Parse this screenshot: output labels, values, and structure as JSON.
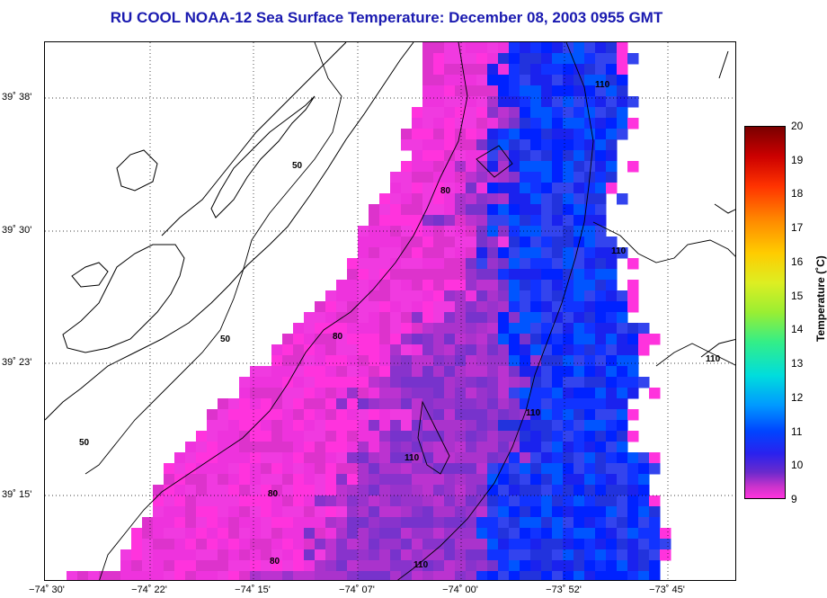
{
  "title": "RU COOL  NOAA-12  Sea Surface Temperature:  December 08, 2003 0955 GMT",
  "lat_labels": [
    "39˚ 38'",
    "39˚ 30'",
    "39˚ 23'",
    "39˚ 15'"
  ],
  "lon_labels": [
    "−74˚ 30'",
    "−74˚ 22'",
    "−74˚ 15'",
    "−74˚ 07'",
    "−74˚ 00'",
    "−73˚ 52'",
    "−73˚ 45'"
  ],
  "colorbar": {
    "title": "Temperature (˚C)",
    "ticks": [
      "20",
      "19",
      "18",
      "17",
      "16",
      "15",
      "14",
      "13",
      "12",
      "11",
      "10",
      "9"
    ],
    "range": [
      9,
      20
    ]
  },
  "contour_labels": [
    "50",
    "50",
    "50",
    "80",
    "80",
    "80",
    "80",
    "110",
    "110",
    "110",
    "110",
    "110",
    "110"
  ],
  "colors": {
    "title": "#1a1ab0",
    "sst_cold": "#ff33dd",
    "sst_mid": "#8833cc",
    "sst_warm": "#1a22ee"
  }
}
